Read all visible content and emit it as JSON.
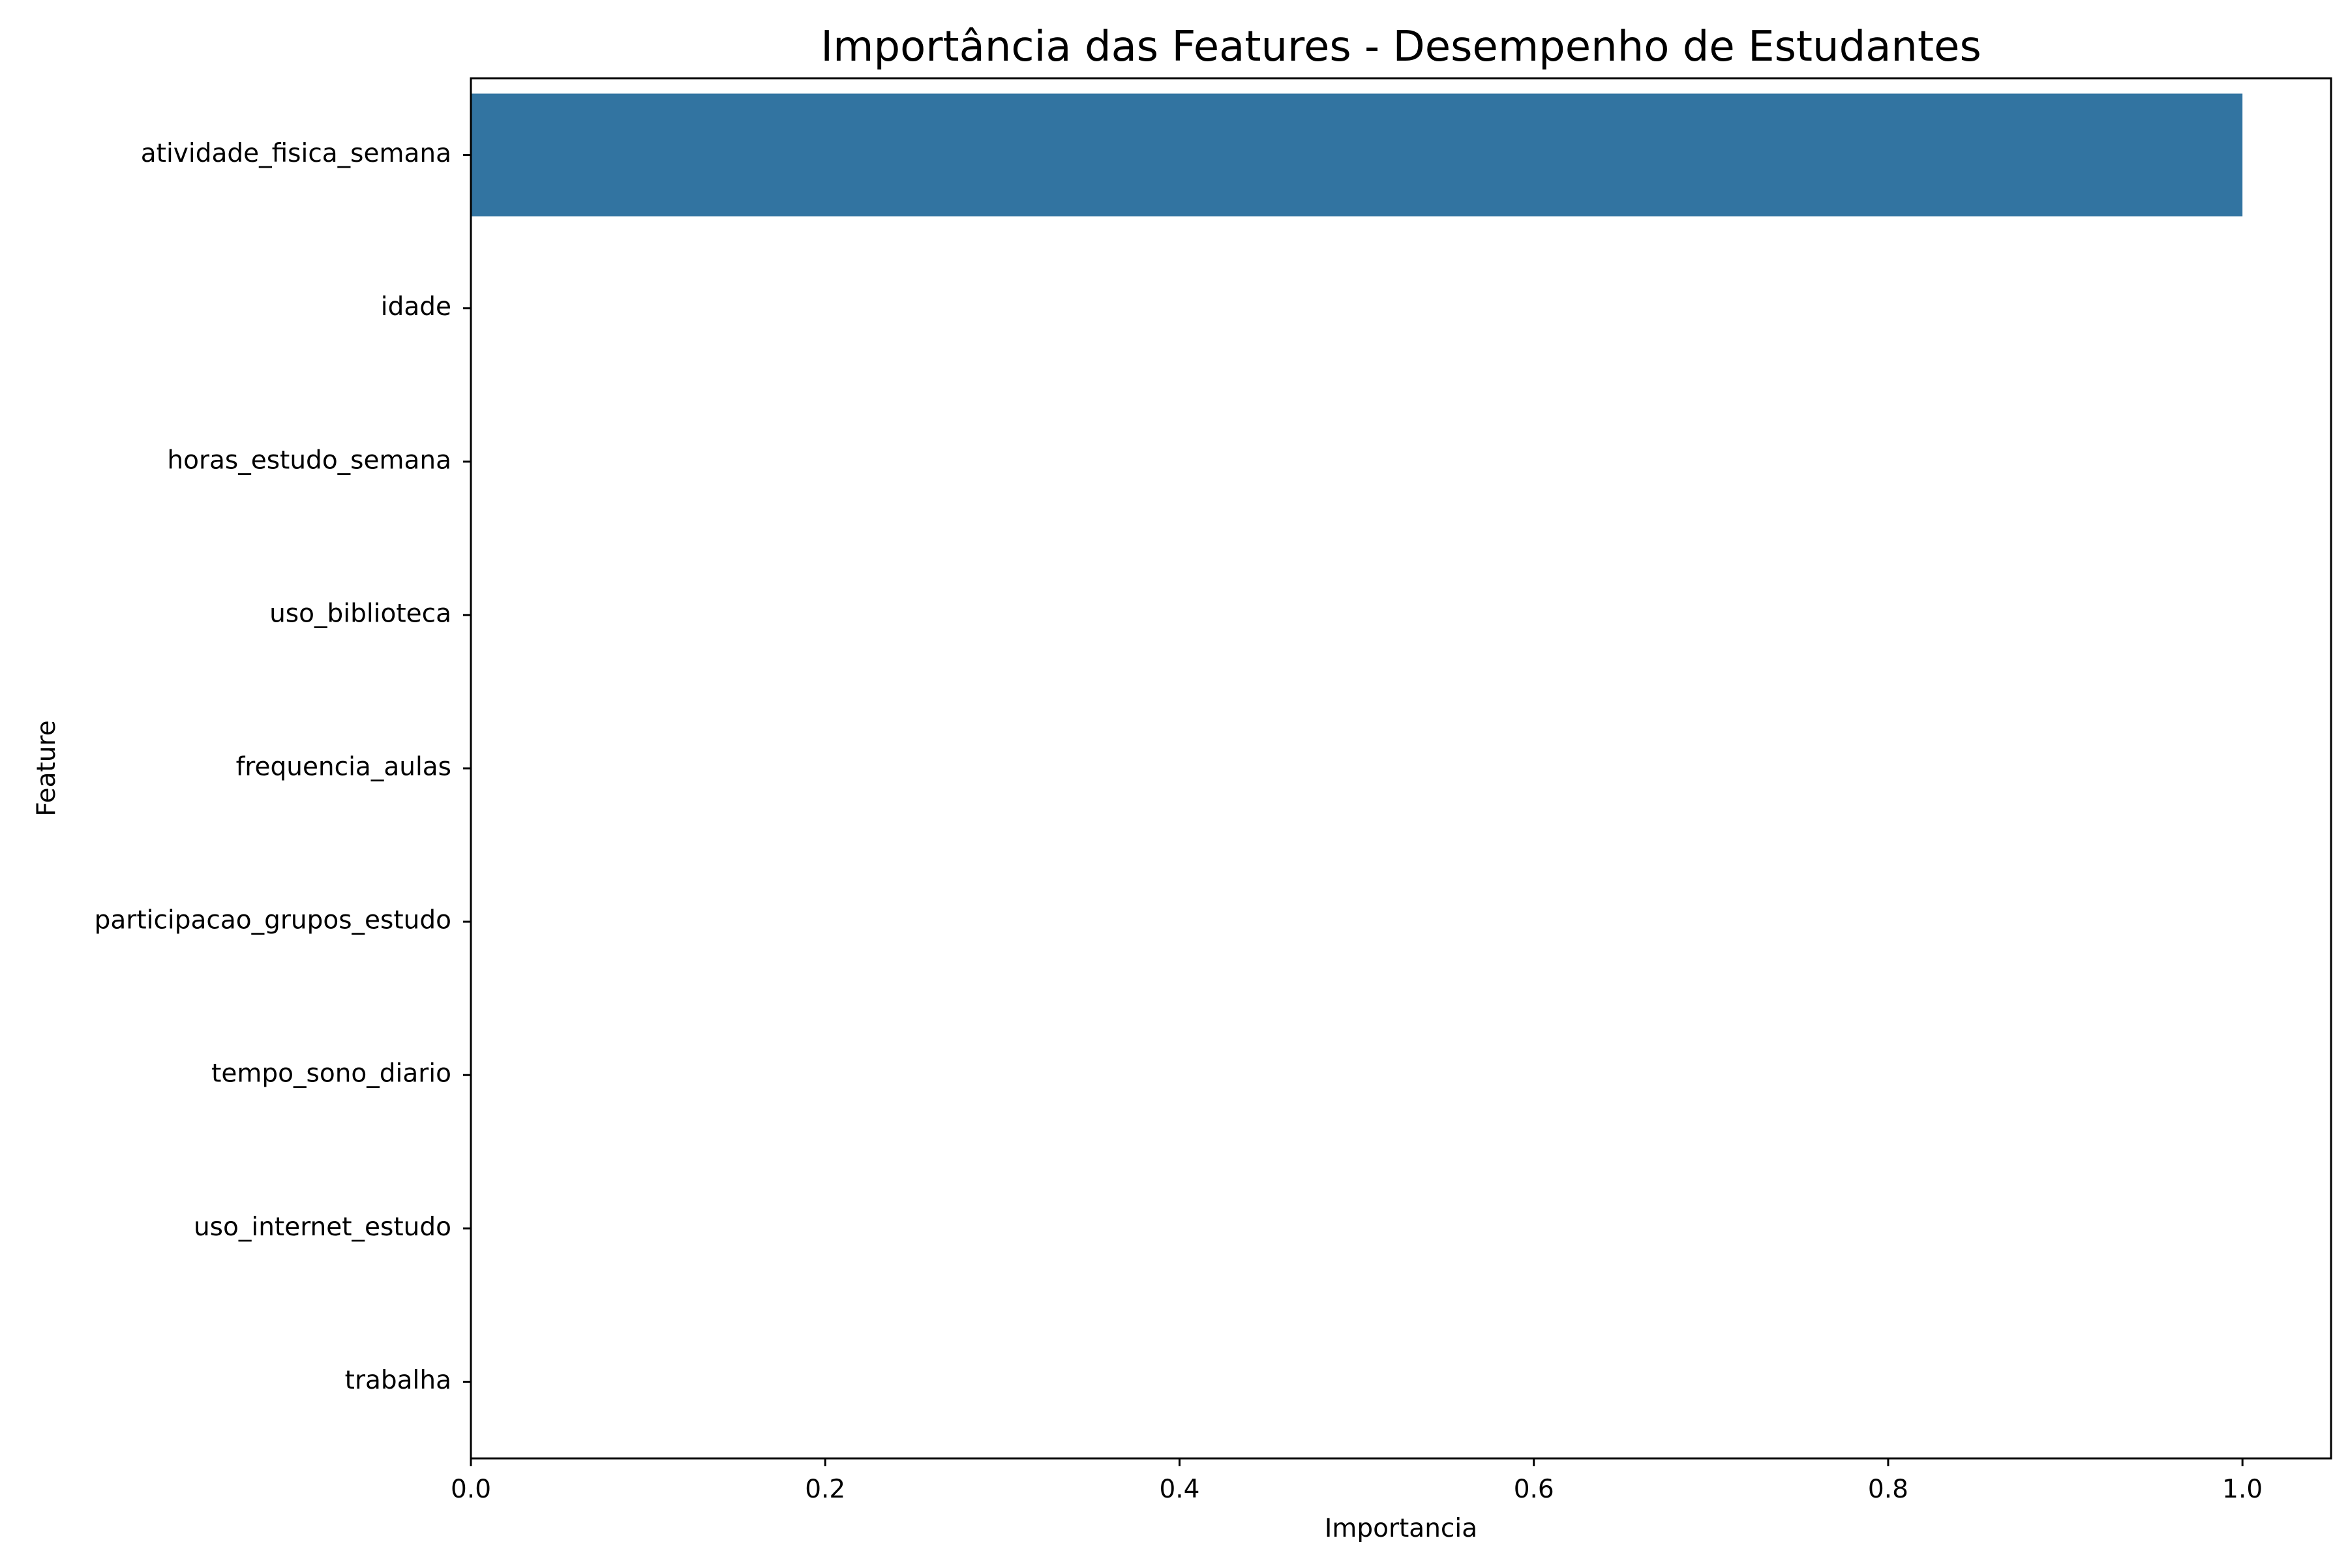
{
  "chart_data": {
    "type": "bar",
    "orientation": "horizontal",
    "title": "Importância das Features - Desempenho de Estudantes",
    "xlabel": "Importancia",
    "ylabel": "Feature",
    "categories": [
      "atividade_fisica_semana",
      "idade",
      "horas_estudo_semana",
      "uso_biblioteca",
      "frequencia_aulas",
      "participacao_grupos_estudo",
      "tempo_sono_diario",
      "uso_internet_estudo",
      "trabalha"
    ],
    "values": [
      1.0,
      0,
      0,
      0,
      0,
      0,
      0,
      0,
      0
    ],
    "xlim": [
      0,
      1.05
    ],
    "xticks": [
      0.0,
      0.2,
      0.4,
      0.6,
      0.8,
      1.0
    ],
    "xtick_labels": [
      "0.0",
      "0.2",
      "0.4",
      "0.6",
      "0.8",
      "1.0"
    ],
    "bar_color": "#3274a1",
    "grid": false,
    "legend": "none"
  }
}
